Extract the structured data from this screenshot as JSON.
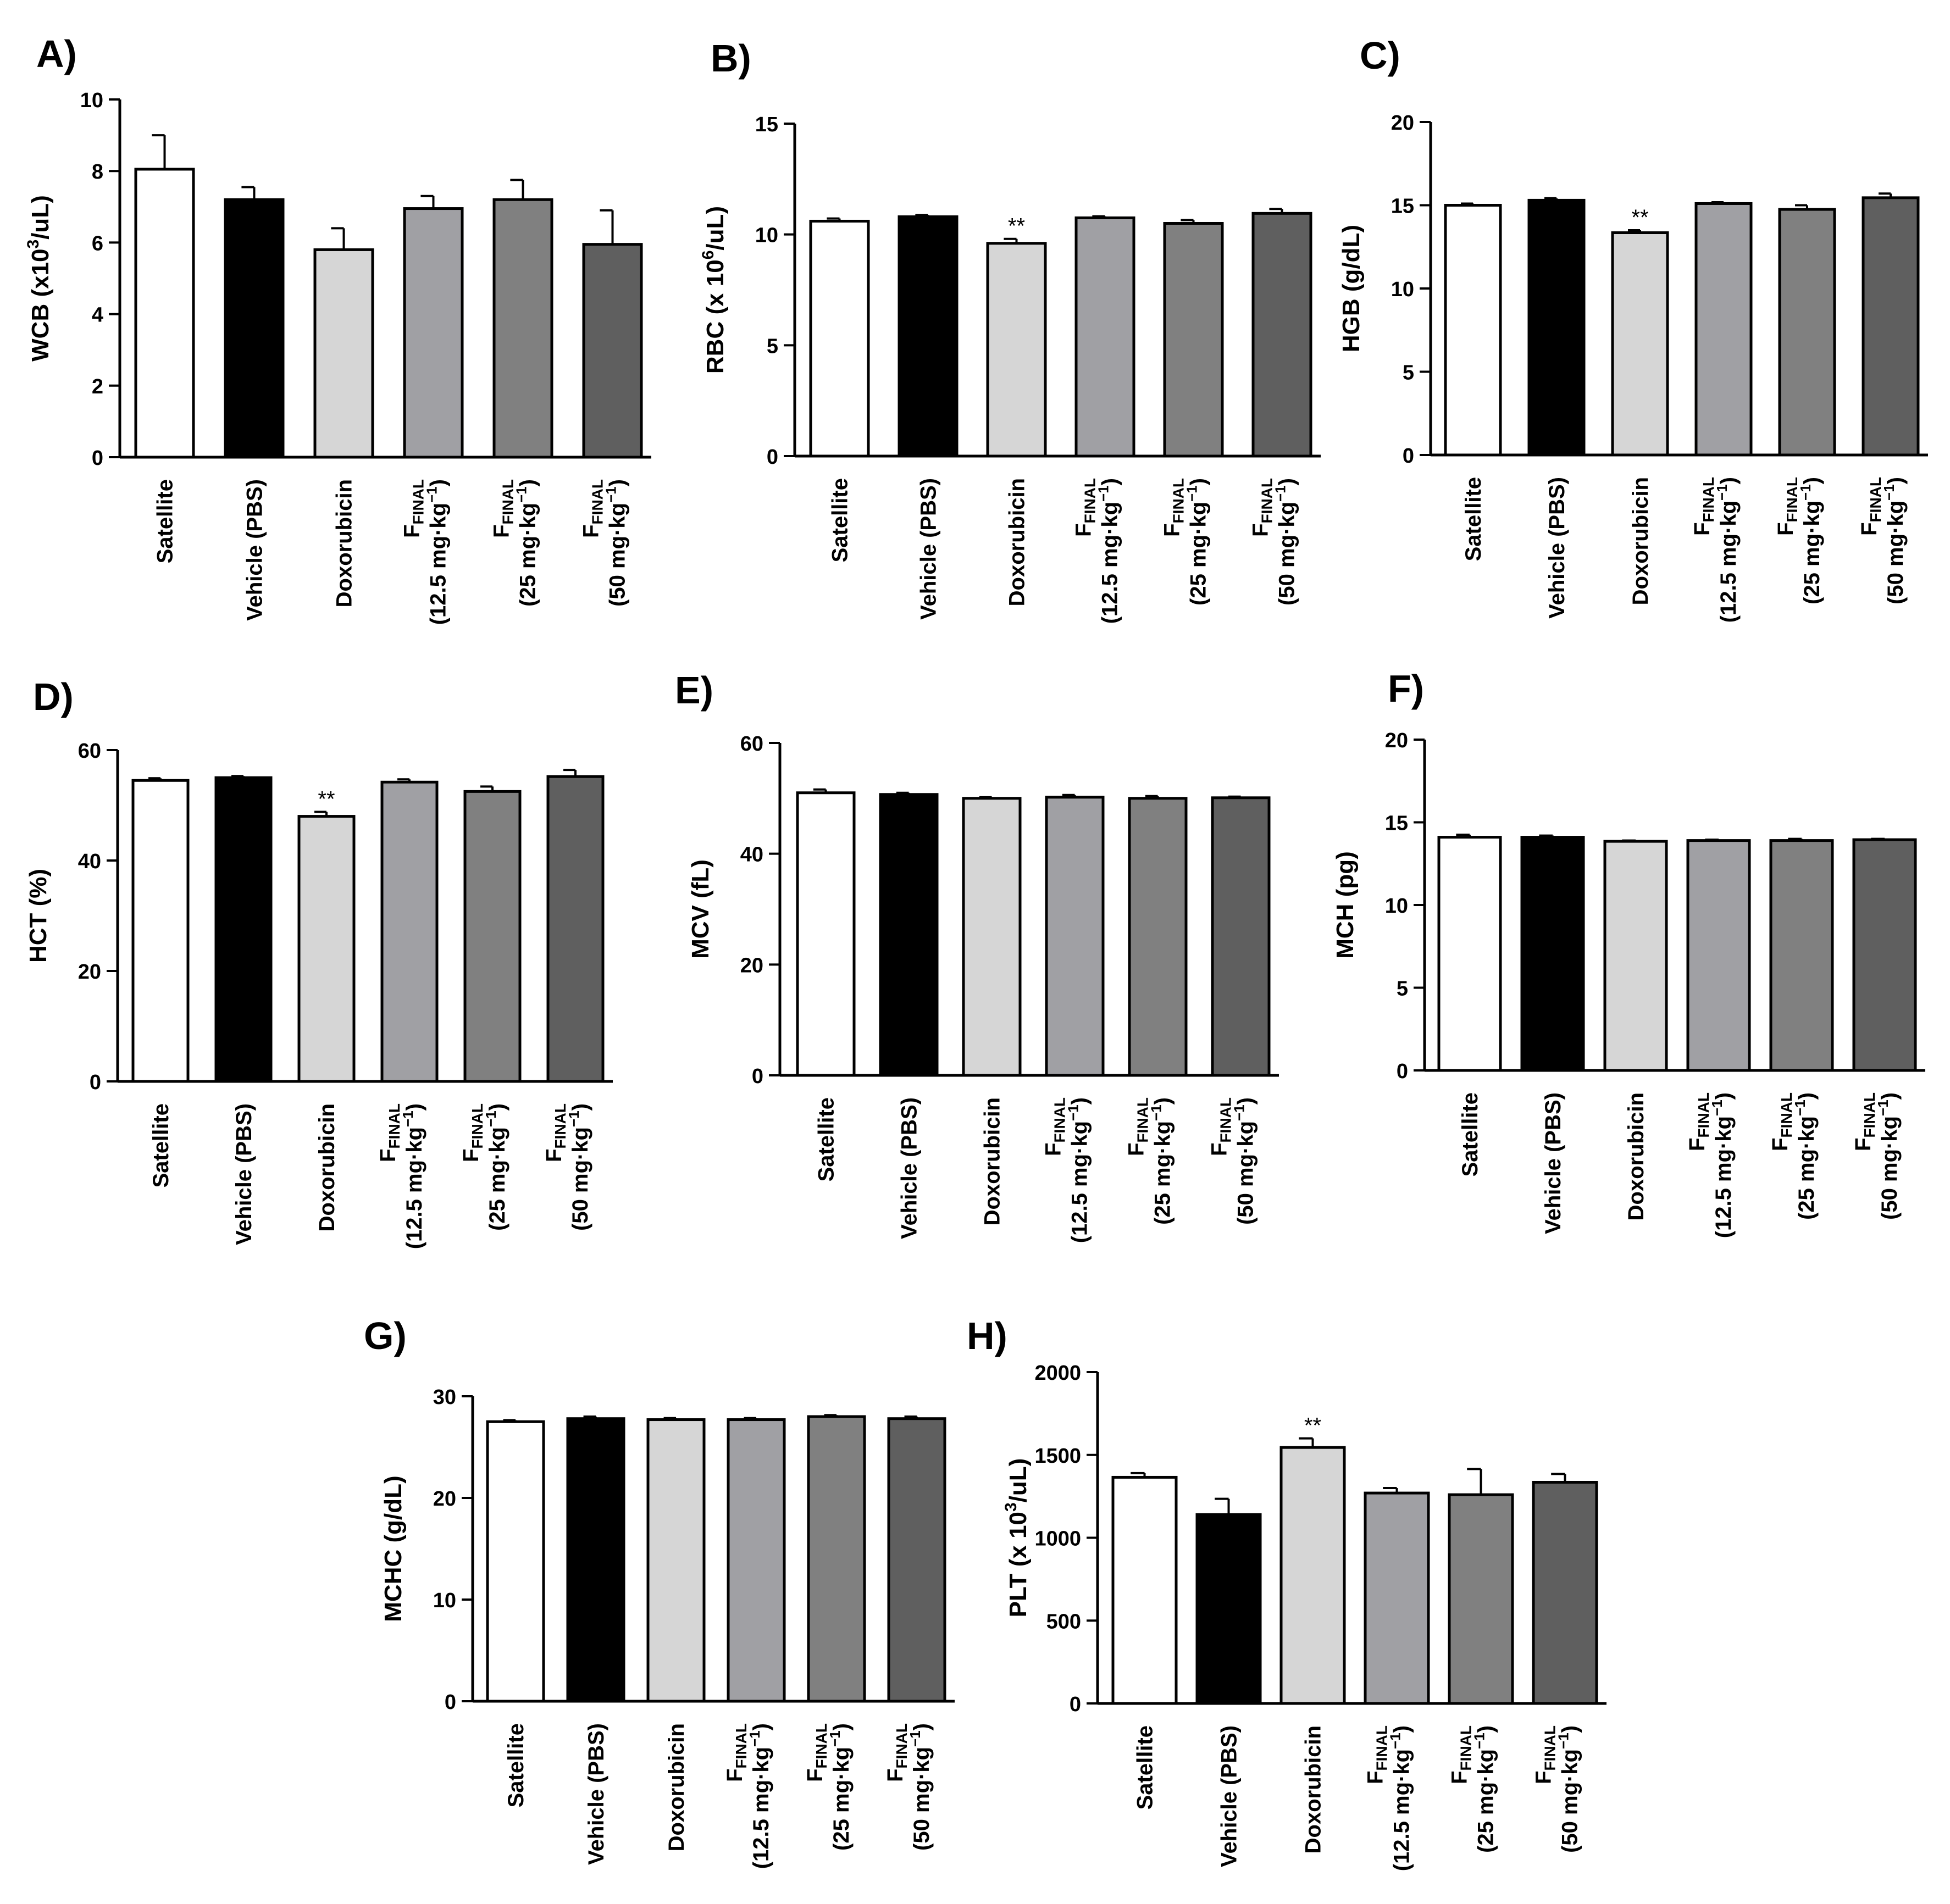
{
  "categories": [
    {
      "main": "Satellite",
      "sub": "",
      "sup": "",
      "sub_suffix": ""
    },
    {
      "main": "Vehicle (PBS)",
      "sub": "",
      "sup": "",
      "sub_suffix": ""
    },
    {
      "main": "Doxorubicin",
      "sub": "",
      "sup": "",
      "sub_suffix": ""
    },
    {
      "main": "F",
      "sub": "FINAL",
      "second": "(12.5 mg·kg",
      "sup": "−1",
      "suffix": ")"
    },
    {
      "main": "F",
      "sub": "FINAL",
      "second": "(25 mg·kg",
      "sup": "−1",
      "suffix": ")"
    },
    {
      "main": "F",
      "sub": "FINAL",
      "second": "(50 mg·kg",
      "sup": "−1",
      "suffix": ")"
    }
  ],
  "bar_colors": [
    "#ffffff",
    "#000000",
    "#d6d6d6",
    "#a0a0a4",
    "#808080",
    "#5f5f5f"
  ],
  "chart_data": [
    {
      "type": "bar",
      "panel": "A)",
      "ylabel": {
        "pre": "WCB (x10",
        "sup": "3",
        "post": "/uL)"
      },
      "ylim": [
        0,
        10
      ],
      "yticks": [
        "0",
        "2",
        "4",
        "6",
        "8",
        "10"
      ],
      "values": [
        8.05,
        7.2,
        5.8,
        6.95,
        7.2,
        5.95
      ],
      "errors": [
        0.95,
        0.35,
        0.6,
        0.35,
        0.55,
        0.95
      ],
      "significance": [
        "",
        "",
        "",
        "",
        "",
        ""
      ]
    },
    {
      "type": "bar",
      "panel": "B)",
      "ylabel": {
        "pre": "RBC (x 10",
        "sup": "6",
        "post": "/uL)"
      },
      "ylim": [
        0,
        15
      ],
      "yticks": [
        "0",
        "5",
        "10",
        "15"
      ],
      "values": [
        10.6,
        10.8,
        9.6,
        10.75,
        10.5,
        10.95
      ],
      "errors": [
        0.12,
        0.08,
        0.2,
        0.07,
        0.15,
        0.2
      ],
      "significance": [
        "",
        "",
        "**",
        "",
        "",
        ""
      ]
    },
    {
      "type": "bar",
      "panel": "C)",
      "ylabel": {
        "pre": "HGB (g/dL)",
        "sup": "",
        "post": ""
      },
      "ylim": [
        0,
        20
      ],
      "yticks": [
        "0",
        "5",
        "10",
        "15",
        "20"
      ],
      "values": [
        15.0,
        15.3,
        13.35,
        15.1,
        14.75,
        15.45
      ],
      "errors": [
        0.1,
        0.12,
        0.15,
        0.08,
        0.25,
        0.25
      ],
      "significance": [
        "",
        "",
        "**",
        "",
        "",
        ""
      ]
    },
    {
      "type": "bar",
      "panel": "D)",
      "ylabel": {
        "pre": "HCT (%)",
        "sup": "",
        "post": ""
      },
      "ylim": [
        0,
        60
      ],
      "yticks": [
        "0",
        "20",
        "40",
        "60"
      ],
      "values": [
        54.5,
        55.0,
        48.0,
        54.2,
        52.5,
        55.2
      ],
      "errors": [
        0.4,
        0.3,
        0.8,
        0.5,
        0.9,
        1.2
      ],
      "significance": [
        "",
        "",
        "**",
        "",
        "",
        ""
      ]
    },
    {
      "type": "bar",
      "panel": "E)",
      "ylabel": {
        "pre": "MCV (fL)",
        "sup": "",
        "post": ""
      },
      "ylim": [
        0,
        60
      ],
      "yticks": [
        "0",
        "20",
        "40",
        "60"
      ],
      "values": [
        51.0,
        50.7,
        50.0,
        50.2,
        50.0,
        50.1
      ],
      "errors": [
        0.6,
        0.3,
        0.2,
        0.4,
        0.4,
        0.2
      ],
      "significance": [
        "",
        "",
        "",
        "",
        "",
        ""
      ]
    },
    {
      "type": "bar",
      "panel": "F)",
      "ylabel": {
        "pre": "MCH (pg)",
        "sup": "",
        "post": ""
      },
      "ylim": [
        0,
        20
      ],
      "yticks": [
        "0",
        "5",
        "10",
        "15",
        "20"
      ],
      "values": [
        14.1,
        14.1,
        13.85,
        13.9,
        13.9,
        13.95
      ],
      "errors": [
        0.15,
        0.1,
        0.05,
        0.05,
        0.1,
        0.05
      ],
      "significance": [
        "",
        "",
        "",
        "",
        "",
        ""
      ]
    },
    {
      "type": "bar",
      "panel": "G)",
      "ylabel": {
        "pre": "MCHC (g/dL)",
        "sup": "",
        "post": ""
      },
      "ylim": [
        0,
        30
      ],
      "yticks": [
        "0",
        "10",
        "20",
        "30"
      ],
      "values": [
        27.5,
        27.8,
        27.7,
        27.7,
        28.0,
        27.8
      ],
      "errors": [
        0.15,
        0.2,
        0.15,
        0.15,
        0.15,
        0.2
      ],
      "significance": [
        "",
        "",
        "",
        "",
        "",
        ""
      ]
    },
    {
      "type": "bar",
      "panel": "H)",
      "ylabel": {
        "pre": "PLT (x 10",
        "sup": "3",
        "post": "/uL)"
      },
      "ylim": [
        0,
        2000
      ],
      "yticks": [
        "0",
        "500",
        "1000",
        "1500",
        "2000"
      ],
      "values": [
        1365,
        1140,
        1545,
        1270,
        1260,
        1335
      ],
      "errors": [
        25,
        95,
        55,
        30,
        155,
        50
      ],
      "significance": [
        "",
        "",
        "**",
        "",
        "",
        ""
      ]
    }
  ]
}
